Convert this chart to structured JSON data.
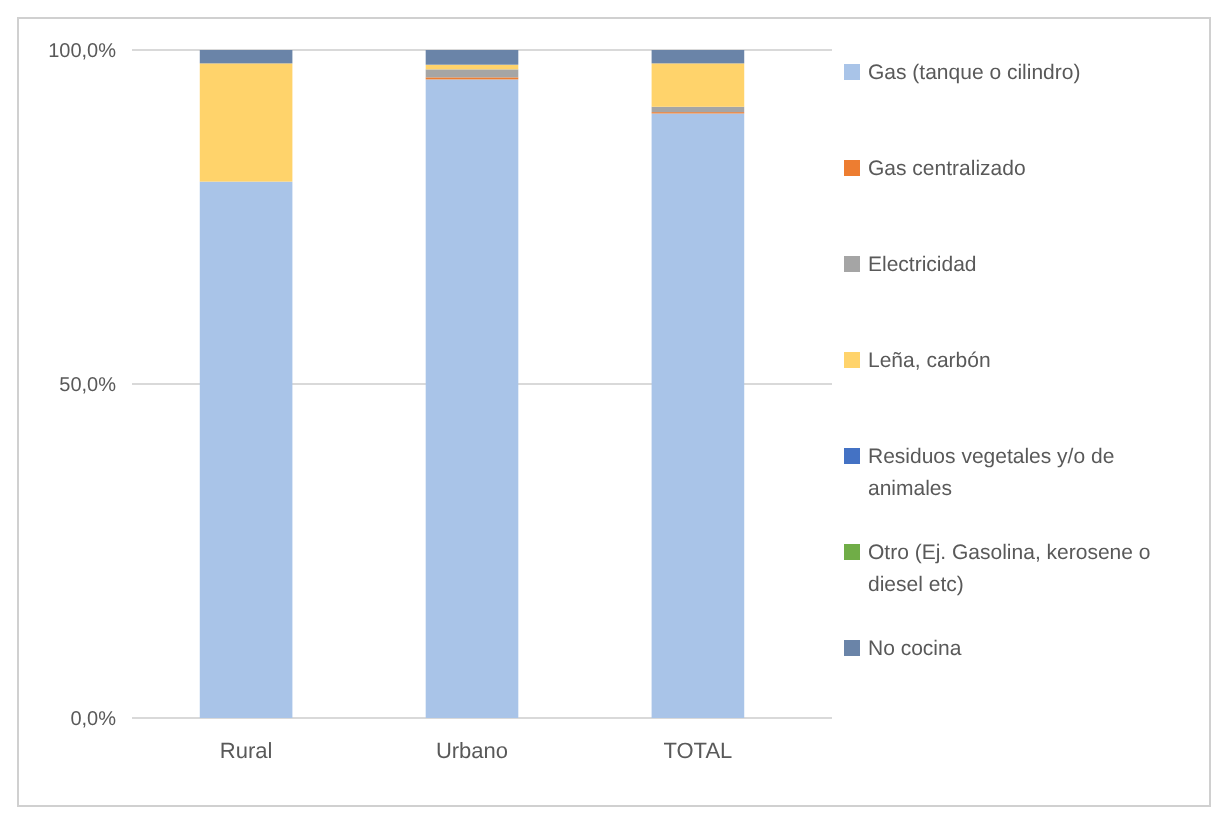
{
  "chart_data": {
    "type": "bar",
    "stacked": true,
    "categories": [
      "Rural",
      "Urbano",
      "TOTAL"
    ],
    "series": [
      {
        "name": "Gas (tanque o cilindro)",
        "color": "#a9c4e8",
        "values": [
          80.3,
          95.6,
          90.5
        ]
      },
      {
        "name": "Gas centralizado",
        "color": "#ed7d31",
        "values": [
          0,
          0.3,
          0.2
        ]
      },
      {
        "name": "Electricidad",
        "color": "#a5a5a5",
        "values": [
          null,
          1.2,
          0.8
        ]
      },
      {
        "name": "Leña, carbón",
        "color": "#ffd36b",
        "values": [
          17.7,
          0.7,
          6.5
        ]
      },
      {
        "name": "Residuos vegetales y/o de animales",
        "color": "#4472c4",
        "values": [
          0,
          0,
          0
        ]
      },
      {
        "name": "Otro (Ej. Gasolina, kerosene o diesel etc)",
        "color": "#70ad47",
        "values": [
          0,
          0,
          0
        ]
      },
      {
        "name": "No cocina",
        "color": "#6a84a8",
        "values": [
          2,
          2.2,
          2
        ]
      }
    ],
    "ylim": [
      0,
      100
    ],
    "yticks": [
      {
        "value": 0,
        "label": "0,0%"
      },
      {
        "value": 50,
        "label": "50,0%"
      },
      {
        "value": 100,
        "label": "100,0%"
      }
    ],
    "grid": "y",
    "legend": "right"
  }
}
